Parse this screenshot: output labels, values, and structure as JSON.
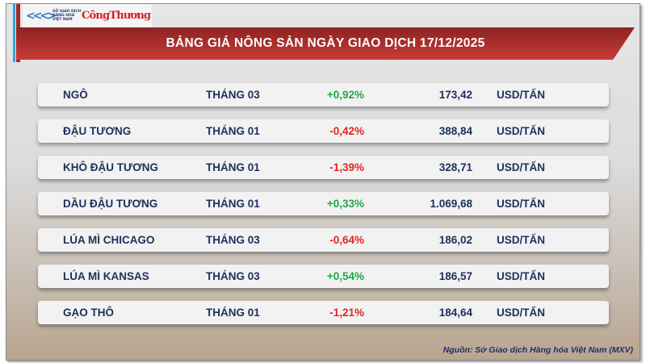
{
  "logos": {
    "mxv": "SỞ GIAO DỊCH HÀNG HÓA VIỆT NAM",
    "congthuong": "CôngThương"
  },
  "title": "BẢNG GIÁ NÔNG SẢN NGÀY GIAO DỊCH 17/12/2025",
  "colors": {
    "up": "#1fa94a",
    "down": "#e52222",
    "text": "#1e2f5c",
    "banner": "#b33030"
  },
  "rows": [
    {
      "name": "NGÔ",
      "month": "THÁNG 03",
      "change": "+0,92%",
      "dir": "up",
      "price": "173,42",
      "unit": "USD/TẤN"
    },
    {
      "name": "ĐẬU TƯƠNG",
      "month": "THÁNG 01",
      "change": "-0,42%",
      "dir": "down",
      "price": "388,84",
      "unit": "USD/TẤN"
    },
    {
      "name": "KHÔ ĐẬU TƯƠNG",
      "month": "THÁNG 01",
      "change": "-1,39%",
      "dir": "down",
      "price": "328,71",
      "unit": "USD/TẤN"
    },
    {
      "name": "DẦU ĐẬU TƯƠNG",
      "month": "THÁNG 01",
      "change": "+0,33%",
      "dir": "up",
      "price": "1.069,68",
      "unit": "USD/TẤN"
    },
    {
      "name": "LÚA MÌ CHICAGO",
      "month": "THÁNG 03",
      "change": "-0,64%",
      "dir": "down",
      "price": "186,02",
      "unit": "USD/TẤN"
    },
    {
      "name": "LÚA MÌ KANSAS",
      "month": "THÁNG 03",
      "change": "+0,54%",
      "dir": "up",
      "price": "186,57",
      "unit": "USD/TẤN"
    },
    {
      "name": "GẠO THÔ",
      "month": "THÁNG 01",
      "change": "-1,21%",
      "dir": "down",
      "price": "184,64",
      "unit": "USD/TẤN"
    }
  ],
  "source": "Nguồn: Sở Giao dịch Hàng hóa Việt Nam (MXV)"
}
